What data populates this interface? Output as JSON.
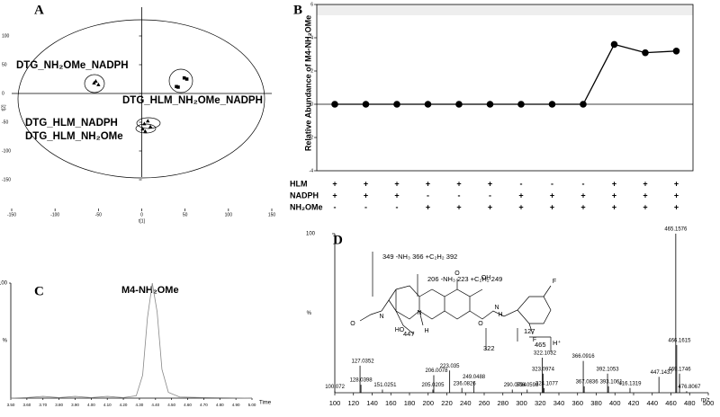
{
  "chart_data": [
    {
      "type": "scatter",
      "panel": "A",
      "xlabel": "t[1]",
      "ylabel": "t[2]",
      "xlim": [
        -150,
        150
      ],
      "ylim": [
        -200,
        150
      ],
      "xticks": [
        -150,
        -100,
        -50,
        0,
        50,
        100,
        150
      ],
      "yticks": [
        -150,
        -100,
        -50,
        0,
        50,
        100
      ],
      "series": [
        {
          "name": "DTG_NH₂OMe_NADPH",
          "marker": "triangle",
          "color": "#000000",
          "x": [
            -55,
            -50,
            -53
          ],
          "values": [
            18,
            15,
            21
          ]
        },
        {
          "name": "DTG_HLM_NH₂OMe_NADPH",
          "marker": "square",
          "color": "#000000",
          "x": [
            40,
            49,
            52,
            42
          ],
          "values": [
            12,
            27,
            25,
            11
          ]
        },
        {
          "name": "DTG_HLM_NADPH",
          "marker": "triangle",
          "color": "#000000",
          "x": [
            3,
            7,
            10
          ],
          "values": [
            -53,
            -48,
            -58
          ]
        },
        {
          "name": "DTG_HLM_NH₂OMe",
          "marker": "triangle",
          "color": "#000000",
          "x": [
            1,
            4
          ],
          "values": [
            -62,
            -66
          ]
        }
      ]
    },
    {
      "type": "line",
      "panel": "B",
      "ylabel": "Relative Abundance of M4-NH₂OMe",
      "ylim": [
        -4,
        6
      ],
      "yticks": [
        -4,
        -2,
        0,
        2,
        4,
        6
      ],
      "color": "#000000",
      "values": [
        0,
        0,
        0,
        0,
        0,
        0,
        0,
        0,
        0,
        3.6,
        3.1,
        3.2
      ],
      "conditions": [
        {
          "name": "HLM",
          "values": [
            "+",
            "+",
            "+",
            "+",
            "+",
            "+",
            "-",
            "-",
            "-",
            "+",
            "+",
            "+"
          ]
        },
        {
          "name": "NADPH",
          "values": [
            "+",
            "+",
            "+",
            "-",
            "-",
            "-",
            "+",
            "+",
            "+",
            "+",
            "+",
            "+"
          ]
        },
        {
          "name": "NH₂OMe",
          "values": [
            "-",
            "-",
            "-",
            "+",
            "+",
            "+",
            "+",
            "+",
            "+",
            "+",
            "+",
            "+"
          ]
        }
      ]
    },
    {
      "type": "line",
      "panel": "C",
      "xlabel": "Time",
      "ylabel": "%",
      "annotation": "M4-NH₂OMe",
      "xlim": [
        3.5,
        5.0
      ],
      "ylim": [
        0,
        100
      ],
      "color": "#888888",
      "xticks": [
        {
          "value": 3.5,
          "label": "3.50"
        },
        {
          "value": 3.6,
          "label": "3.60"
        },
        {
          "value": 3.7,
          "label": "3.70"
        },
        {
          "value": 3.8,
          "label": "3.80"
        },
        {
          "value": 3.9,
          "label": "3.90"
        },
        {
          "value": 4.0,
          "label": "4.00"
        },
        {
          "value": 4.1,
          "label": "4.10"
        },
        {
          "value": 4.2,
          "label": "4.20"
        },
        {
          "value": 4.3,
          "label": "4.30"
        },
        {
          "value": 4.4,
          "label": "4.40"
        },
        {
          "value": 4.5,
          "label": "4.50"
        },
        {
          "value": 4.6,
          "label": "4.60"
        },
        {
          "value": 4.7,
          "label": "4.70"
        },
        {
          "value": 4.8,
          "label": "4.80"
        },
        {
          "value": 4.9,
          "label": "4.90"
        },
        {
          "value": 5.0,
          "label": "5.00"
        }
      ],
      "yticks": [
        100
      ],
      "x": [
        3.5,
        3.6,
        3.7,
        3.8,
        3.9,
        4.0,
        4.1,
        4.2,
        4.28,
        4.32,
        4.35,
        4.38,
        4.41,
        4.44,
        4.48,
        4.55,
        4.7,
        5.0
      ],
      "values": [
        0,
        0.5,
        1.5,
        0.5,
        1.5,
        0.5,
        1.5,
        0.5,
        2,
        20,
        70,
        100,
        75,
        25,
        5,
        1,
        0.5,
        0
      ]
    },
    {
      "type": "bar",
      "panel": "D",
      "xlabel": "m/z",
      "ylabel": "%",
      "color": "#000000",
      "xlim": [
        100,
        500
      ],
      "ylim": [
        0,
        100
      ],
      "xticks": [
        100,
        120,
        140,
        160,
        180,
        200,
        220,
        240,
        260,
        280,
        300,
        320,
        340,
        360,
        380,
        400,
        420,
        440,
        460,
        480,
        500
      ],
      "yticks": [
        100
      ],
      "x": [
        100.072,
        127.0352,
        128.0398,
        151.0251,
        205.0205,
        206.0078,
        223.035,
        236.0826,
        249.0488,
        290.0794,
        306.0598,
        322.1032,
        323.0974,
        324.1077,
        366.0916,
        367.0836,
        392.1053,
        393.1061,
        416.1319,
        447.1437,
        465.1576,
        466.1615,
        469.1746,
        476.8067
      ],
      "values": [
        1,
        17,
        5,
        2,
        2,
        11,
        14,
        3,
        7,
        2,
        2,
        22,
        12,
        3,
        20,
        4,
        12,
        4,
        3,
        10,
        100,
        30,
        12,
        1
      ],
      "annotations": [
        "349 -NH₃ 366 +C₂H₂ 392",
        "206 -NH₃ 223 +C₂H₂ 249",
        "447",
        "322",
        "127",
        "465",
        "H⁺"
      ],
      "structure_labels": [
        "O",
        "N",
        "N",
        "HO",
        "H",
        "O",
        "OH",
        "O",
        "N",
        "H",
        "F",
        "F"
      ]
    }
  ]
}
